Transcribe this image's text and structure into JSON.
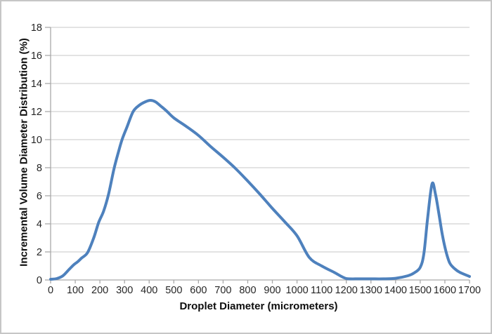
{
  "chart_data": {
    "type": "line",
    "title": "",
    "xlabel": "Droplet Diameter (micrometers)",
    "ylabel": "Incremental Volume Diameter Distribution (%)",
    "xlim": [
      0,
      1700
    ],
    "ylim": [
      0,
      18
    ],
    "x_ticks": [
      0,
      100,
      200,
      300,
      400,
      500,
      600,
      700,
      800,
      900,
      1000,
      1100,
      1200,
      1300,
      1400,
      1500,
      1600,
      1700
    ],
    "y_ticks": [
      0,
      2,
      4,
      6,
      8,
      10,
      12,
      14,
      16,
      18
    ],
    "grid": "horizontal-only",
    "legend": "none",
    "colors": {
      "line": "#4E81BD",
      "gridline": "#D2D2D2",
      "axis": "#A9A9A9",
      "tick_label": "#262626",
      "axis_title": "#0D0D0D",
      "frame_border": "#C6C6C6",
      "background": "#FFFFFF"
    },
    "series": [
      {
        "name": "Incremental Volume Diameter Distribution",
        "smooth": true,
        "x": [
          0,
          25,
          50,
          75,
          95,
          110,
          125,
          150,
          175,
          195,
          215,
          235,
          257,
          275,
          290,
          310,
          335,
          360,
          385,
          405,
          425,
          450,
          470,
          500,
          550,
          600,
          650,
          700,
          750,
          800,
          850,
          900,
          950,
          1000,
          1050,
          1100,
          1150,
          1200,
          1250,
          1300,
          1350,
          1400,
          1450,
          1475,
          1500,
          1515,
          1530,
          1548,
          1562,
          1575,
          1590,
          1605,
          1620,
          1640,
          1660,
          1700
        ],
        "y": [
          0.05,
          0.1,
          0.3,
          0.75,
          1.1,
          1.3,
          1.55,
          1.95,
          3.0,
          4.1,
          4.9,
          6.1,
          7.9,
          9.1,
          10.0,
          10.9,
          12.0,
          12.45,
          12.7,
          12.8,
          12.7,
          12.35,
          12.05,
          11.55,
          10.95,
          10.3,
          9.5,
          8.75,
          7.95,
          7.05,
          6.1,
          5.1,
          4.15,
          3.15,
          1.6,
          1.0,
          0.55,
          0.1,
          0.08,
          0.08,
          0.08,
          0.12,
          0.3,
          0.5,
          0.9,
          1.9,
          4.4,
          6.85,
          6.1,
          4.8,
          3.2,
          2.0,
          1.2,
          0.8,
          0.55,
          0.25
        ]
      }
    ],
    "annotations": {
      "main_peak": {
        "x": 405,
        "y": 12.8
      },
      "secondary_peak": {
        "x": 1550,
        "y": 6.85
      }
    }
  }
}
